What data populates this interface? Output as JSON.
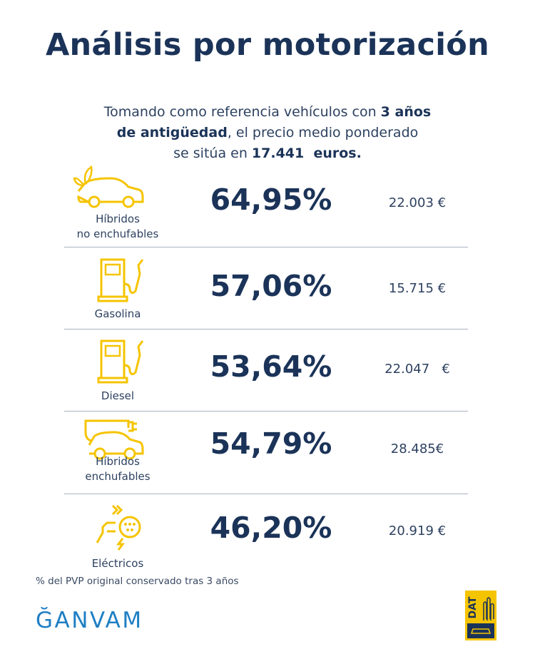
{
  "title": "Análisis por motorización",
  "intro": [
    [
      {
        "text": "Tomando como referencia vehículos con ",
        "bold": false
      },
      {
        "text": "3 años",
        "bold": true
      }
    ],
    [
      {
        "text": "de antigüedad",
        "bold": true
      },
      {
        "text": ", el precio medio ponderado",
        "bold": false
      }
    ],
    [
      {
        "text": "se sitúa en ",
        "bold": false
      },
      {
        "text": "17.441  euros.",
        "bold": true
      }
    ]
  ],
  "rows": [
    {
      "label": [
        "Híbridos",
        "no enchufables"
      ],
      "percent": "64,95%",
      "price": "22.003 €"
    },
    {
      "label": [
        "Gasolina"
      ],
      "percent": "57,06%",
      "price": "15.715 €"
    },
    {
      "label": [
        "Diesel"
      ],
      "percent": "53,64%",
      "price": "22.047   €"
    },
    {
      "label": [
        "Híbridos",
        "enchufables"
      ],
      "percent": "54,79%",
      "price": "28.485€"
    },
    {
      "label": [
        "Eléctricos"
      ],
      "percent": "46,20%",
      "price": "20.919 €"
    }
  ],
  "footnote": "% del PVP original conservado tras 3 años",
  "logos": {
    "ganvam": "ĞANVAM",
    "dat": "DAT"
  }
}
